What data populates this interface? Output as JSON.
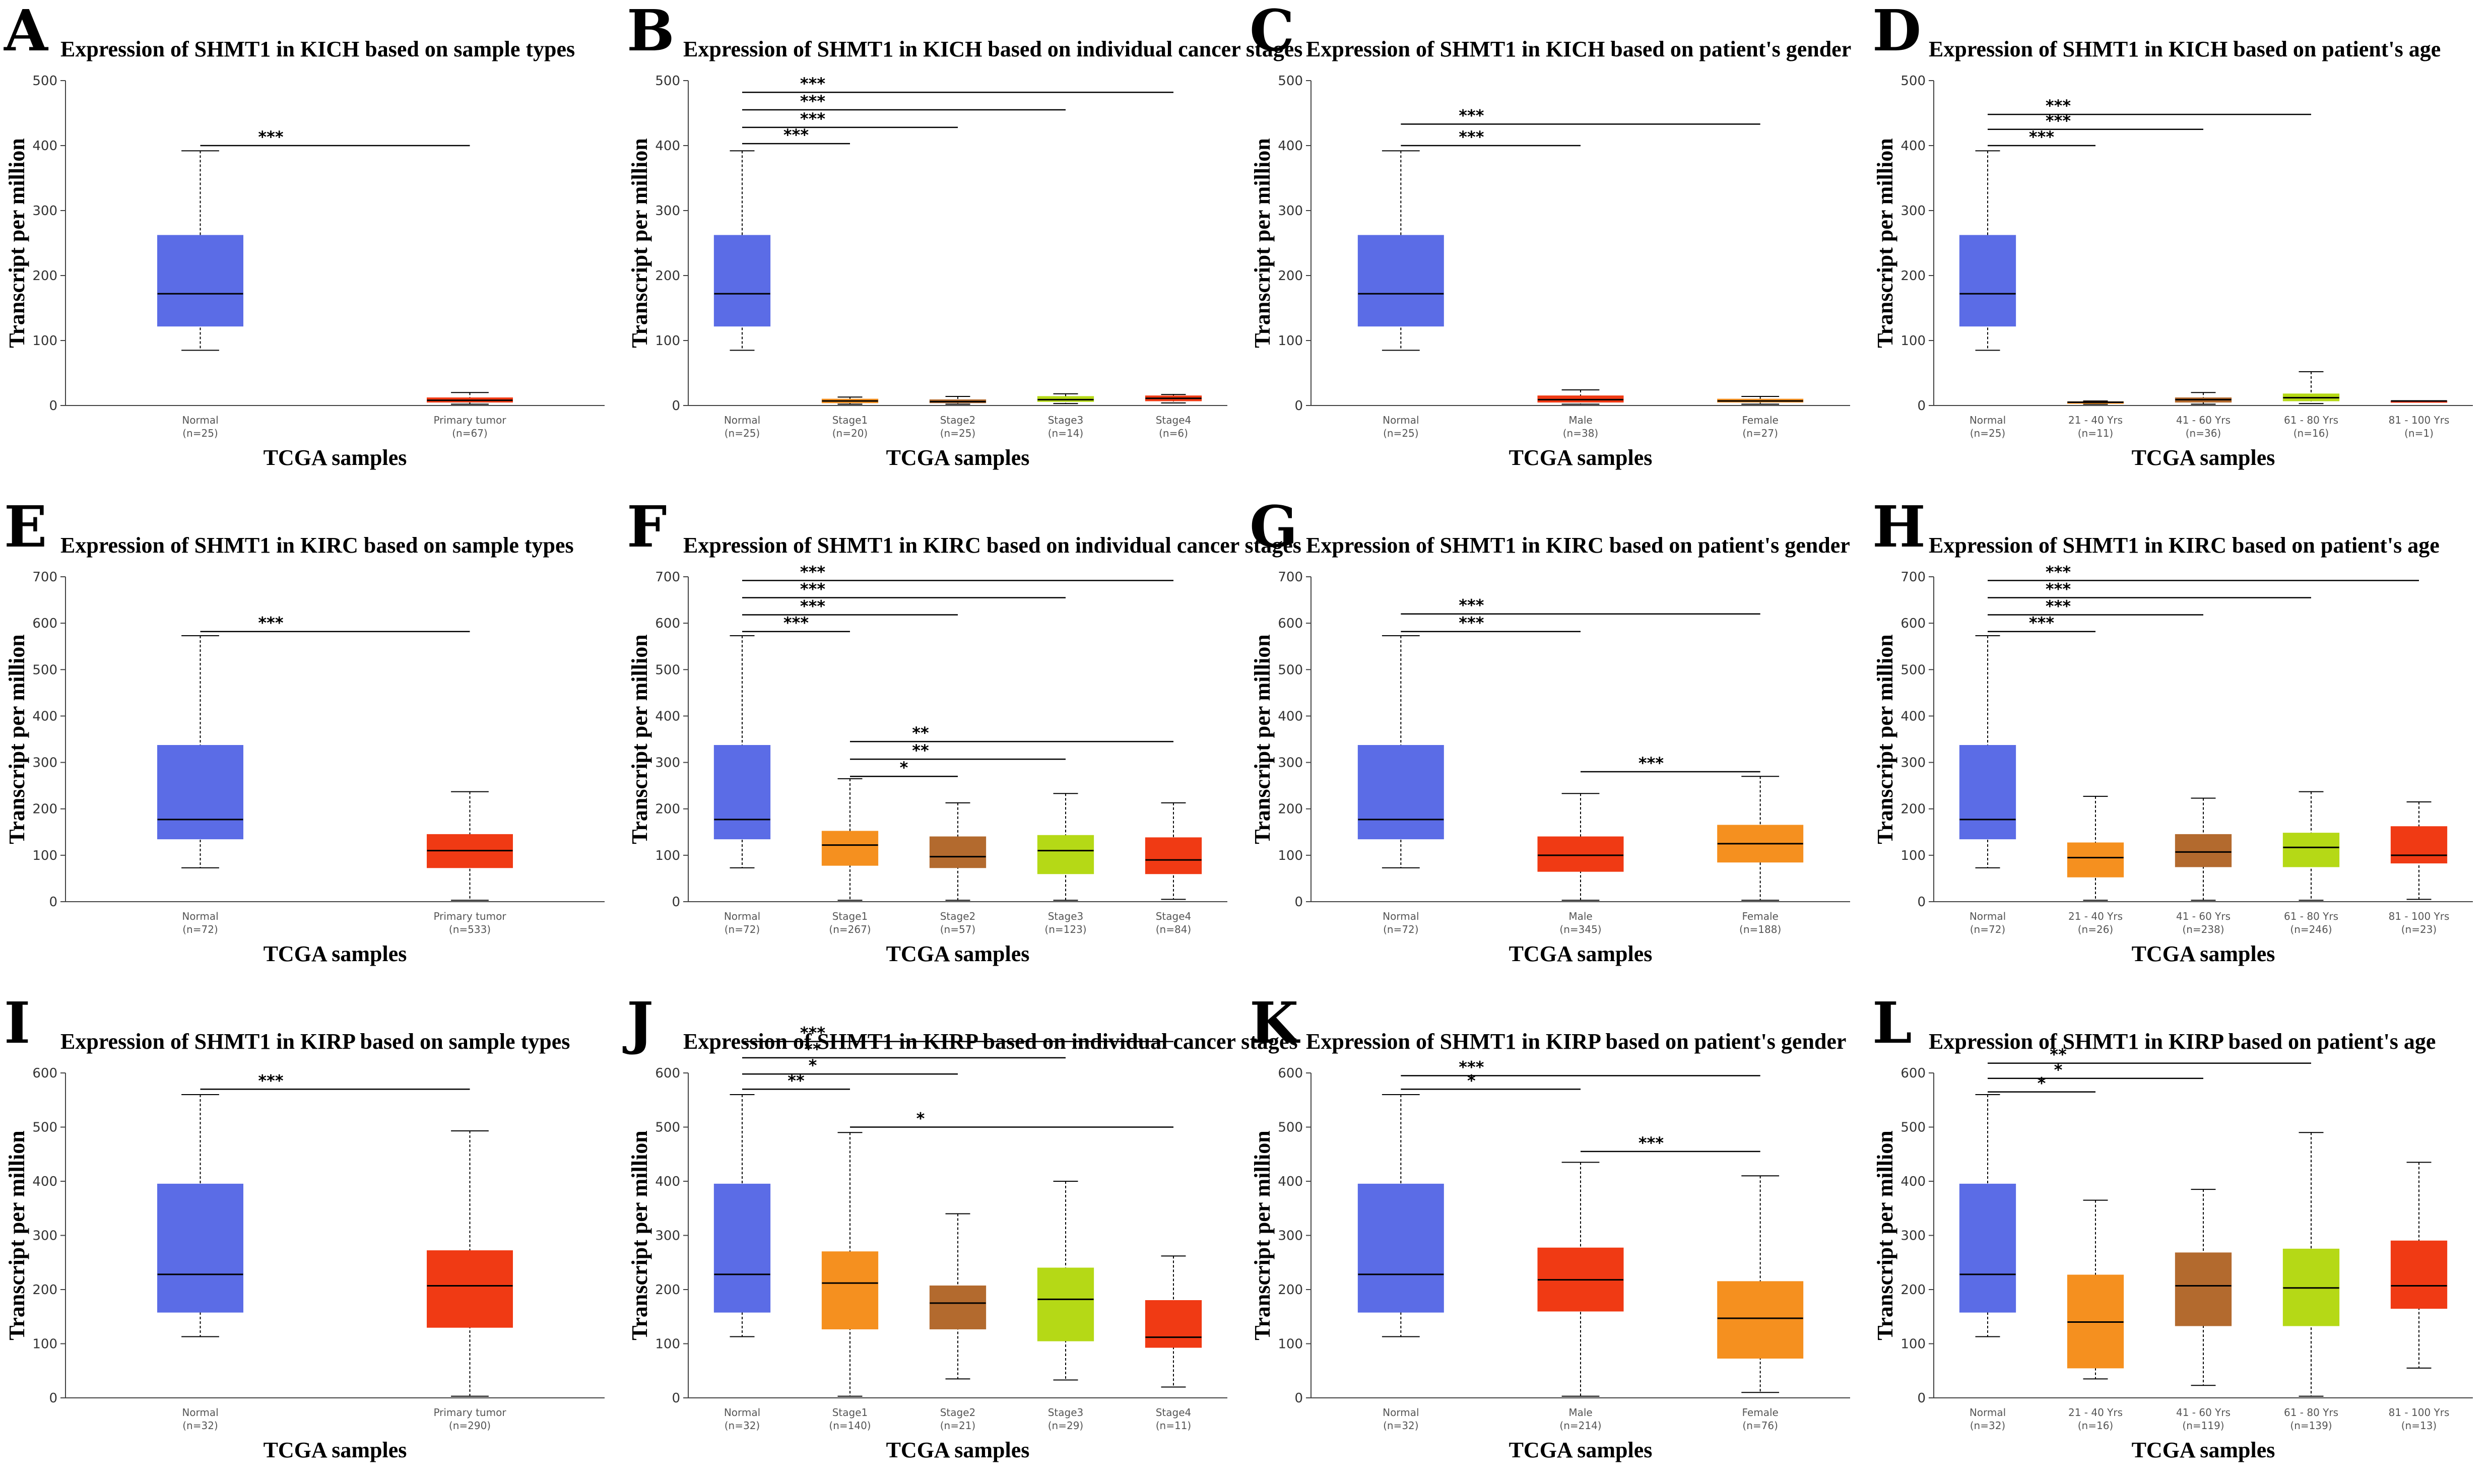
{
  "colors": {
    "normal": "#5b6ce6",
    "primary_tumor": "#f03a14",
    "male": "#f03a14",
    "female": "#f5901f",
    "stage1": "#f5901f",
    "stage2": "#b36a2e",
    "stage3": "#b5d916",
    "stage4": "#f03a14",
    "age_21_40": "#f5901f",
    "age_41_60": "#b36a2e",
    "age_61_80": "#b5d916",
    "age_81_100": "#f03a14"
  },
  "chart_data": [
    {
      "panel": "A",
      "type": "box",
      "title": "Expression of SHMT1 in KICH based on sample types",
      "xlabel": "TCGA samples",
      "ylabel": "Transcript per million",
      "ylim": [
        0,
        500
      ],
      "yticks": [
        0,
        100,
        200,
        300,
        400,
        500
      ],
      "categories": [
        "Normal",
        "Primary tumor"
      ],
      "counts": [
        "(n=25)",
        "(n=67)"
      ],
      "colors": [
        "#5b6ce6",
        "#f03a14"
      ],
      "boxes": [
        {
          "min": 85,
          "q1": 122,
          "median": 172,
          "q3": 262,
          "max": 392
        },
        {
          "min": 2,
          "q1": 5,
          "median": 8,
          "q3": 12,
          "max": 20
        }
      ],
      "significance": [
        {
          "from": 0,
          "to": 1,
          "y": 400,
          "label": "***"
        }
      ]
    },
    {
      "panel": "B",
      "type": "box",
      "title": "Expression of SHMT1 in KICH based on individual cancer stages",
      "xlabel": "TCGA samples",
      "ylabel": "Transcript per million",
      "ylim": [
        0,
        500
      ],
      "yticks": [
        0,
        100,
        200,
        300,
        400,
        500
      ],
      "categories": [
        "Normal",
        "Stage1",
        "Stage2",
        "Stage3",
        "Stage4"
      ],
      "counts": [
        "(n=25)",
        "(n=20)",
        "(n=25)",
        "(n=14)",
        "(n=6)"
      ],
      "colors": [
        "#5b6ce6",
        "#f5901f",
        "#b36a2e",
        "#b5d916",
        "#f03a14"
      ],
      "boxes": [
        {
          "min": 85,
          "q1": 122,
          "median": 172,
          "q3": 262,
          "max": 392
        },
        {
          "min": 2,
          "q1": 4,
          "median": 7,
          "q3": 10,
          "max": 13
        },
        {
          "min": 2,
          "q1": 4,
          "median": 6,
          "q3": 9,
          "max": 14
        },
        {
          "min": 3,
          "q1": 6,
          "median": 9,
          "q3": 14,
          "max": 18
        },
        {
          "min": 4,
          "q1": 7,
          "median": 11,
          "q3": 15,
          "max": 17
        }
      ],
      "significance": [
        {
          "from": 0,
          "to": 1,
          "y": 403,
          "label": "***"
        },
        {
          "from": 0,
          "to": 2,
          "y": 428,
          "label": "***"
        },
        {
          "from": 0,
          "to": 3,
          "y": 455,
          "label": "***"
        },
        {
          "from": 0,
          "to": 4,
          "y": 482,
          "label": "***"
        }
      ]
    },
    {
      "panel": "C",
      "type": "box",
      "title": "Expression of SHMT1 in KICH based on patient's gender",
      "xlabel": "TCGA samples",
      "ylabel": "Transcript per million",
      "ylim": [
        0,
        500
      ],
      "yticks": [
        0,
        100,
        200,
        300,
        400,
        500
      ],
      "categories": [
        "Normal",
        "Male",
        "Female"
      ],
      "counts": [
        "(n=25)",
        "(n=38)",
        "(n=27)"
      ],
      "colors": [
        "#5b6ce6",
        "#f03a14",
        "#f5901f"
      ],
      "boxes": [
        {
          "min": 85,
          "q1": 122,
          "median": 172,
          "q3": 262,
          "max": 392
        },
        {
          "min": 2,
          "q1": 5,
          "median": 9,
          "q3": 15,
          "max": 24
        },
        {
          "min": 2,
          "q1": 5,
          "median": 7,
          "q3": 10,
          "max": 14
        }
      ],
      "significance": [
        {
          "from": 0,
          "to": 1,
          "y": 400,
          "label": "***"
        },
        {
          "from": 0,
          "to": 2,
          "y": 433,
          "label": "***"
        }
      ]
    },
    {
      "panel": "D",
      "type": "box",
      "title": "Expression of SHMT1 in KICH based on patient's age",
      "xlabel": "TCGA samples",
      "ylabel": "Transcript per million",
      "ylim": [
        0,
        500
      ],
      "yticks": [
        0,
        100,
        200,
        300,
        400,
        500
      ],
      "categories": [
        "Normal",
        "21 - 40 Yrs",
        "41 - 60 Yrs",
        "61 - 80 Yrs",
        "81 - 100 Yrs"
      ],
      "counts": [
        "(n=25)",
        "(n=11)",
        "(n=36)",
        "(n=16)",
        "(n=1)"
      ],
      "colors": [
        "#5b6ce6",
        "#f5901f",
        "#b36a2e",
        "#b5d916",
        "#f03a14"
      ],
      "boxes": [
        {
          "min": 85,
          "q1": 122,
          "median": 172,
          "q3": 262,
          "max": 392
        },
        {
          "min": 2,
          "q1": 3,
          "median": 5,
          "q3": 6,
          "max": 7
        },
        {
          "min": 2,
          "q1": 5,
          "median": 9,
          "q3": 12,
          "max": 20
        },
        {
          "min": 3,
          "q1": 7,
          "median": 12,
          "q3": 18,
          "max": 52
        },
        {
          "min": 7,
          "q1": 7,
          "median": 7,
          "q3": 7,
          "max": 7
        }
      ],
      "significance": [
        {
          "from": 0,
          "to": 1,
          "y": 400,
          "label": "***"
        },
        {
          "from": 0,
          "to": 2,
          "y": 425,
          "label": "***"
        },
        {
          "from": 0,
          "to": 3,
          "y": 448,
          "label": "***"
        }
      ]
    },
    {
      "panel": "E",
      "type": "box",
      "title": "Expression of SHMT1 in KIRC based on sample types",
      "xlabel": "TCGA samples",
      "ylabel": "Transcript per million",
      "ylim": [
        0,
        700
      ],
      "yticks": [
        0,
        100,
        200,
        300,
        400,
        500,
        600,
        700
      ],
      "categories": [
        "Normal",
        "Primary tumor"
      ],
      "counts": [
        "(n=72)",
        "(n=533)"
      ],
      "colors": [
        "#5b6ce6",
        "#f03a14"
      ],
      "boxes": [
        {
          "min": 73,
          "q1": 135,
          "median": 177,
          "q3": 337,
          "max": 573
        },
        {
          "min": 3,
          "q1": 73,
          "median": 110,
          "q3": 145,
          "max": 237
        }
      ],
      "significance": [
        {
          "from": 0,
          "to": 1,
          "y": 582,
          "label": "***"
        }
      ]
    },
    {
      "panel": "F",
      "type": "box",
      "title": "Expression of SHMT1 in KIRC based on individual cancer stages",
      "xlabel": "TCGA samples",
      "ylabel": "Transcript per million",
      "ylim": [
        0,
        700
      ],
      "yticks": [
        0,
        100,
        200,
        300,
        400,
        500,
        600,
        700
      ],
      "categories": [
        "Normal",
        "Stage1",
        "Stage2",
        "Stage3",
        "Stage4"
      ],
      "counts": [
        "(n=72)",
        "(n=267)",
        "(n=57)",
        "(n=123)",
        "(n=84)"
      ],
      "colors": [
        "#5b6ce6",
        "#f5901f",
        "#b36a2e",
        "#b5d916",
        "#f03a14"
      ],
      "boxes": [
        {
          "min": 73,
          "q1": 135,
          "median": 177,
          "q3": 337,
          "max": 573
        },
        {
          "min": 3,
          "q1": 78,
          "median": 122,
          "q3": 152,
          "max": 265
        },
        {
          "min": 3,
          "q1": 73,
          "median": 97,
          "q3": 140,
          "max": 213
        },
        {
          "min": 3,
          "q1": 60,
          "median": 110,
          "q3": 143,
          "max": 233
        },
        {
          "min": 5,
          "q1": 60,
          "median": 90,
          "q3": 138,
          "max": 213
        }
      ],
      "significance": [
        {
          "from": 0,
          "to": 1,
          "y": 582,
          "label": "***"
        },
        {
          "from": 0,
          "to": 2,
          "y": 618,
          "label": "***"
        },
        {
          "from": 0,
          "to": 3,
          "y": 655,
          "label": "***"
        },
        {
          "from": 0,
          "to": 4,
          "y": 692,
          "label": "***"
        },
        {
          "from": 1,
          "to": 2,
          "y": 270,
          "label": "*"
        },
        {
          "from": 1,
          "to": 3,
          "y": 307,
          "label": "**"
        },
        {
          "from": 1,
          "to": 4,
          "y": 345,
          "label": "**"
        }
      ]
    },
    {
      "panel": "G",
      "type": "box",
      "title": "Expression of SHMT1 in KIRC based on patient's gender",
      "xlabel": "TCGA samples",
      "ylabel": "Transcript per million",
      "ylim": [
        0,
        700
      ],
      "yticks": [
        0,
        100,
        200,
        300,
        400,
        500,
        600,
        700
      ],
      "categories": [
        "Normal",
        "Male",
        "Female"
      ],
      "counts": [
        "(n=72)",
        "(n=345)",
        "(n=188)"
      ],
      "colors": [
        "#5b6ce6",
        "#f03a14",
        "#f5901f"
      ],
      "boxes": [
        {
          "min": 73,
          "q1": 135,
          "median": 177,
          "q3": 337,
          "max": 573
        },
        {
          "min": 3,
          "q1": 65,
          "median": 100,
          "q3": 140,
          "max": 233
        },
        {
          "min": 3,
          "q1": 85,
          "median": 125,
          "q3": 165,
          "max": 270
        }
      ],
      "significance": [
        {
          "from": 0,
          "to": 1,
          "y": 582,
          "label": "***"
        },
        {
          "from": 0,
          "to": 2,
          "y": 620,
          "label": "***"
        },
        {
          "from": 1,
          "to": 2,
          "y": 280,
          "label": "***"
        }
      ]
    },
    {
      "panel": "H",
      "type": "box",
      "title": "Expression of SHMT1 in KIRC based on patient's age",
      "xlabel": "TCGA samples",
      "ylabel": "Transcript per million",
      "ylim": [
        0,
        700
      ],
      "yticks": [
        0,
        100,
        200,
        300,
        400,
        500,
        600,
        700
      ],
      "categories": [
        "Normal",
        "21 - 40 Yrs",
        "41 - 60 Yrs",
        "61 - 80 Yrs",
        "81 - 100 Yrs"
      ],
      "counts": [
        "(n=72)",
        "(n=26)",
        "(n=238)",
        "(n=246)",
        "(n=23)"
      ],
      "colors": [
        "#5b6ce6",
        "#f5901f",
        "#b36a2e",
        "#b5d916",
        "#f03a14"
      ],
      "boxes": [
        {
          "min": 73,
          "q1": 135,
          "median": 177,
          "q3": 337,
          "max": 573
        },
        {
          "min": 3,
          "q1": 53,
          "median": 95,
          "q3": 127,
          "max": 227
        },
        {
          "min": 3,
          "q1": 75,
          "median": 107,
          "q3": 145,
          "max": 223
        },
        {
          "min": 3,
          "q1": 75,
          "median": 117,
          "q3": 148,
          "max": 237
        },
        {
          "min": 5,
          "q1": 83,
          "median": 100,
          "q3": 162,
          "max": 215
        }
      ],
      "significance": [
        {
          "from": 0,
          "to": 1,
          "y": 582,
          "label": "***"
        },
        {
          "from": 0,
          "to": 2,
          "y": 618,
          "label": "***"
        },
        {
          "from": 0,
          "to": 3,
          "y": 655,
          "label": "***"
        },
        {
          "from": 0,
          "to": 4,
          "y": 692,
          "label": "***"
        }
      ]
    },
    {
      "panel": "I",
      "type": "box",
      "title": "Expression of SHMT1 in KIRP based on sample types",
      "xlabel": "TCGA samples",
      "ylabel": "Transcript per million",
      "ylim": [
        0,
        600
      ],
      "yticks": [
        0,
        100,
        200,
        300,
        400,
        500,
        600
      ],
      "categories": [
        "Normal",
        "Primary tumor"
      ],
      "counts": [
        "(n=32)",
        "(n=290)"
      ],
      "colors": [
        "#5b6ce6",
        "#f03a14"
      ],
      "boxes": [
        {
          "min": 113,
          "q1": 158,
          "median": 228,
          "q3": 395,
          "max": 560
        },
        {
          "min": 3,
          "q1": 130,
          "median": 207,
          "q3": 272,
          "max": 493
        }
      ],
      "significance": [
        {
          "from": 0,
          "to": 1,
          "y": 570,
          "label": "***"
        }
      ]
    },
    {
      "panel": "J",
      "type": "box",
      "title": "Expression of SHMT1 in KIRP based on individual cancer stages",
      "xlabel": "TCGA samples",
      "ylabel": "Transcript per million",
      "ylim": [
        0,
        600
      ],
      "yticks": [
        0,
        100,
        200,
        300,
        400,
        500,
        600
      ],
      "categories": [
        "Normal",
        "Stage1",
        "Stage2",
        "Stage3",
        "Stage4"
      ],
      "counts": [
        "(n=32)",
        "(n=140)",
        "(n=21)",
        "(n=29)",
        "(n=11)"
      ],
      "colors": [
        "#5b6ce6",
        "#f5901f",
        "#b36a2e",
        "#b5d916",
        "#f03a14"
      ],
      "boxes": [
        {
          "min": 113,
          "q1": 158,
          "median": 228,
          "q3": 395,
          "max": 560
        },
        {
          "min": 3,
          "q1": 127,
          "median": 212,
          "q3": 270,
          "max": 490
        },
        {
          "min": 35,
          "q1": 127,
          "median": 175,
          "q3": 207,
          "max": 340
        },
        {
          "min": 33,
          "q1": 105,
          "median": 182,
          "q3": 240,
          "max": 400
        },
        {
          "min": 20,
          "q1": 93,
          "median": 112,
          "q3": 180,
          "max": 262
        }
      ],
      "significance": [
        {
          "from": 0,
          "to": 1,
          "y": 570,
          "label": "**"
        },
        {
          "from": 0,
          "to": 2,
          "y": 598,
          "label": "*"
        },
        {
          "from": 0,
          "to": 3,
          "y": 628,
          "label": "**"
        },
        {
          "from": 0,
          "to": 4,
          "y": 658,
          "label": "***"
        },
        {
          "from": 1,
          "to": 4,
          "y": 500,
          "label": "*"
        }
      ]
    },
    {
      "panel": "K",
      "type": "box",
      "title": "Expression of SHMT1 in KIRP based on patient's gender",
      "xlabel": "TCGA samples",
      "ylabel": "Transcript per million",
      "ylim": [
        0,
        600
      ],
      "yticks": [
        0,
        100,
        200,
        300,
        400,
        500,
        600
      ],
      "categories": [
        "Normal",
        "Male",
        "Female"
      ],
      "counts": [
        "(n=32)",
        "(n=214)",
        "(n=76)"
      ],
      "colors": [
        "#5b6ce6",
        "#f03a14",
        "#f5901f"
      ],
      "boxes": [
        {
          "min": 113,
          "q1": 158,
          "median": 228,
          "q3": 395,
          "max": 560
        },
        {
          "min": 3,
          "q1": 160,
          "median": 218,
          "q3": 277,
          "max": 435
        },
        {
          "min": 10,
          "q1": 73,
          "median": 147,
          "q3": 215,
          "max": 410
        }
      ],
      "significance": [
        {
          "from": 0,
          "to": 1,
          "y": 570,
          "label": "*"
        },
        {
          "from": 0,
          "to": 2,
          "y": 595,
          "label": "***"
        },
        {
          "from": 1,
          "to": 2,
          "y": 455,
          "label": "***"
        }
      ]
    },
    {
      "panel": "L",
      "type": "box",
      "title": "Expression of SHMT1 in KIRP based on patient's age",
      "xlabel": "TCGA samples",
      "ylabel": "Transcript per million",
      "ylim": [
        0,
        600
      ],
      "yticks": [
        0,
        100,
        200,
        300,
        400,
        500,
        600
      ],
      "categories": [
        "Normal",
        "21 - 40 Yrs",
        "41 - 60 Yrs",
        "61 - 80 Yrs",
        "81 - 100 Yrs"
      ],
      "counts": [
        "(n=32)",
        "(n=16)",
        "(n=119)",
        "(n=139)",
        "(n=13)"
      ],
      "colors": [
        "#5b6ce6",
        "#f5901f",
        "#b36a2e",
        "#b5d916",
        "#f03a14"
      ],
      "boxes": [
        {
          "min": 113,
          "q1": 158,
          "median": 228,
          "q3": 395,
          "max": 560
        },
        {
          "min": 35,
          "q1": 55,
          "median": 140,
          "q3": 227,
          "max": 365
        },
        {
          "min": 23,
          "q1": 133,
          "median": 207,
          "q3": 268,
          "max": 385
        },
        {
          "min": 3,
          "q1": 133,
          "median": 203,
          "q3": 275,
          "max": 490
        },
        {
          "min": 55,
          "q1": 165,
          "median": 207,
          "q3": 290,
          "max": 435
        }
      ],
      "significance": [
        {
          "from": 0,
          "to": 1,
          "y": 565,
          "label": "*"
        },
        {
          "from": 0,
          "to": 2,
          "y": 590,
          "label": "*"
        },
        {
          "from": 0,
          "to": 3,
          "y": 618,
          "label": "**"
        }
      ]
    }
  ]
}
